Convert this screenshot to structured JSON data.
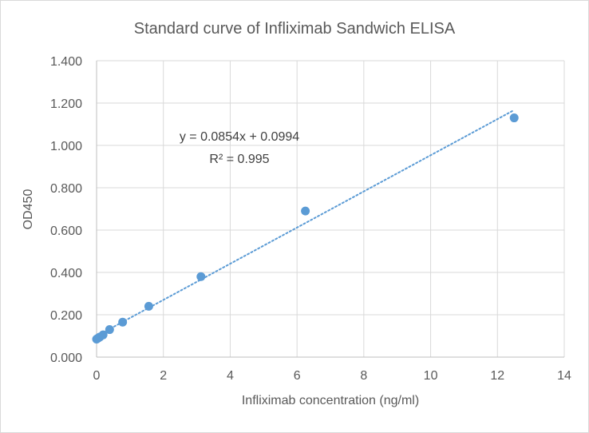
{
  "chart_data": {
    "type": "scatter",
    "title": "Standard curve of Infliximab Sandwich ELISA",
    "xlabel": "Infliximab concentration (ng/ml)",
    "ylabel": "OD450",
    "xlim": [
      0,
      14
    ],
    "ylim": [
      0,
      1.4
    ],
    "x_ticks": [
      "0",
      "2",
      "4",
      "6",
      "8",
      "10",
      "12",
      "14"
    ],
    "y_ticks": [
      "0.000",
      "0.200",
      "0.400",
      "0.600",
      "0.800",
      "1.000",
      "1.200",
      "1.400"
    ],
    "grid": true,
    "series": [
      {
        "color": "#5b9bd5",
        "x": [
          0,
          0.049,
          0.098,
          0.195,
          0.39,
          0.78,
          1.5625,
          3.125,
          6.25,
          12.5
        ],
        "y": [
          0.085,
          0.09,
          0.095,
          0.105,
          0.13,
          0.165,
          0.24,
          0.38,
          0.69,
          1.13
        ]
      }
    ],
    "trendline": {
      "type": "linear",
      "style": "dotted",
      "color": "#5b9bd5",
      "slope": 0.0854,
      "intercept": 0.0994,
      "x_range": [
        0,
        12.5
      ],
      "equation_label": "y = 0.0854x + 0.0994",
      "r2_label": "R² = 0.995"
    }
  }
}
